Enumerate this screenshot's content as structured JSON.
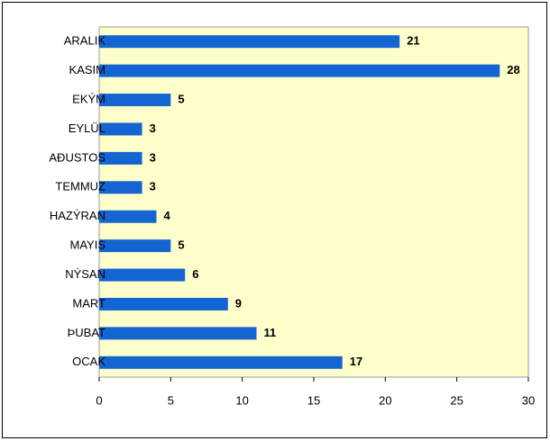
{
  "chart_data": {
    "type": "bar",
    "orientation": "horizontal",
    "categories": [
      "ARALIK",
      "KASIM",
      "EKÝM",
      "EYLÜL",
      "AÐUSTOS",
      "TEMMUZ",
      "HAZÝRAN",
      "MAYIS",
      "NÝSAN",
      "MART",
      "ÞUBAT",
      "OCAK"
    ],
    "values": [
      21,
      28,
      5,
      3,
      3,
      3,
      4,
      5,
      6,
      9,
      11,
      17
    ],
    "color": "#1464d2",
    "xlim": [
      0,
      30
    ],
    "xticks": [
      0,
      5,
      10,
      15,
      20,
      25,
      30
    ],
    "grid": false
  }
}
